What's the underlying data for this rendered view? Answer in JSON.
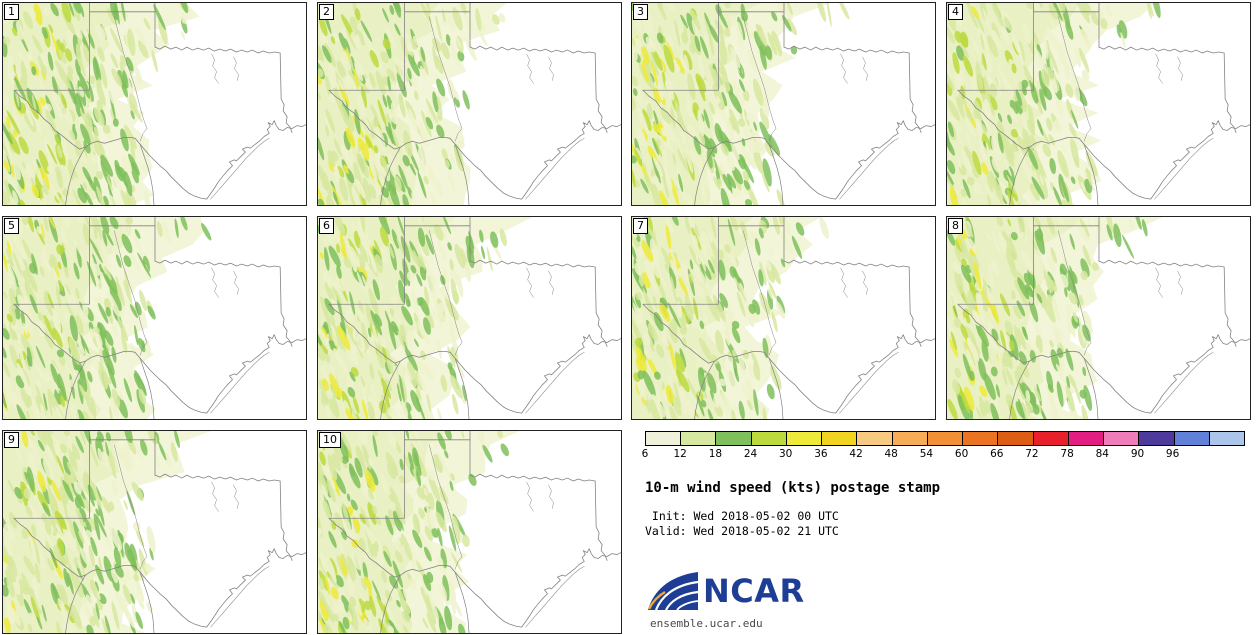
{
  "figure": {
    "title": "10-m wind speed (kts) postage stamp",
    "init_label": " Init: Wed 2018-05-02 00 UTC",
    "valid_label": "Valid: Wed 2018-05-02 21 UTC",
    "logo_text": "NCAR",
    "credit_url": "ensemble.ucar.edu",
    "logo_color": "#1d3e94"
  },
  "panels": [
    {
      "member": "1"
    },
    {
      "member": "2"
    },
    {
      "member": "3"
    },
    {
      "member": "4"
    },
    {
      "member": "5"
    },
    {
      "member": "6"
    },
    {
      "member": "7"
    },
    {
      "member": "8"
    },
    {
      "member": "9"
    },
    {
      "member": "10"
    }
  ],
  "chart_data": {
    "type": "heatmap",
    "subtype": "ensemble postage-stamp maps",
    "variable": "10-m wind speed",
    "units": "kts",
    "title": "10-m wind speed (kts) postage stamp",
    "init_time": "Wed 2018-05-02 00 UTC",
    "valid_time": "Wed 2018-05-02 21 UTC",
    "members": [
      "1",
      "2",
      "3",
      "4",
      "5",
      "6",
      "7",
      "8",
      "9",
      "10"
    ],
    "region": "Texas, eastern New Mexico, Oklahoma, northern Mexico, Gulf coast",
    "layout": {
      "grid": "4 columns x 3 rows",
      "legend_position": "bottom-right",
      "grid_lines": false
    },
    "colorbar": {
      "orientation": "horizontal",
      "tick_labels": [
        "6",
        "12",
        "18",
        "24",
        "30",
        "36",
        "42",
        "48",
        "54",
        "60",
        "66",
        "72",
        "78",
        "84",
        "90",
        "96"
      ],
      "segment_colors": [
        "#f0f1da",
        "#d7e8a0",
        "#7fbf5c",
        "#bcda3e",
        "#edea3a",
        "#f0d420",
        "#f8c981",
        "#f7ad57",
        "#f29036",
        "#eb7423",
        "#dd5d15",
        "#e8202c",
        "#e31e83",
        "#f07cba",
        "#4e3a9c",
        "#6181d8",
        "#abc6ea"
      ]
    },
    "depicted_values_note": "All ten members show wind speeds mostly in the 6-30 kt shaded range (pale green to green/yellow streaks) over western Texas and eastern New Mexico, with unshaded (<6 kt) air over central and eastern Texas."
  }
}
